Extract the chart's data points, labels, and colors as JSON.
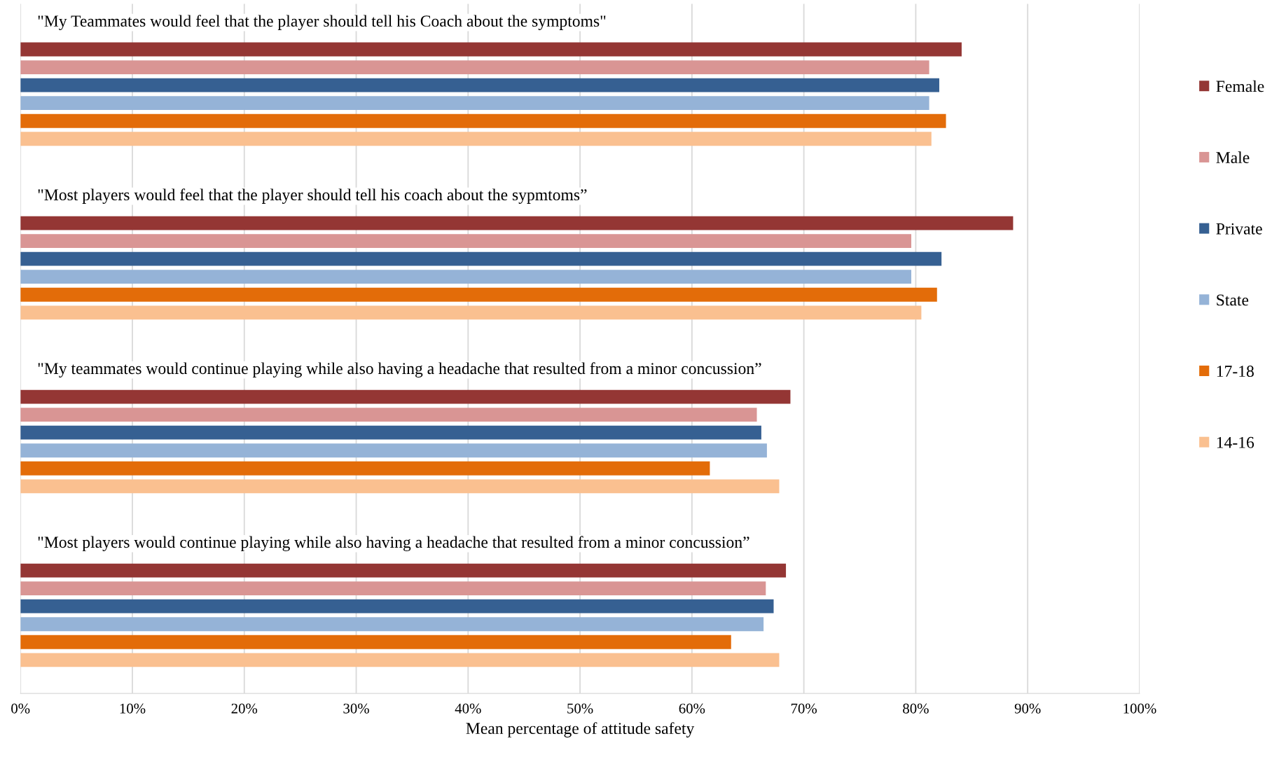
{
  "chart_data": {
    "type": "bar",
    "orientation": "horizontal",
    "xlabel": "Mean percentage of attitude safety",
    "categories": [
      "\"My Teammates would feel that the player should tell his Coach about the symptoms\"",
      "\"Most players would feel that the player should tell his coach about the sypmtoms”",
      "\"My teammates would continue playing while also having a headache that resulted from a minor concussion”",
      "\"Most players would continue playing while also having a headache that resulted from a minor concussion”"
    ],
    "series": [
      {
        "name": "Female",
        "color": "#943634",
        "values": [
          84.1,
          88.7,
          68.8,
          68.4
        ]
      },
      {
        "name": "Male",
        "color": "#d99594",
        "values": [
          81.2,
          79.6,
          65.8,
          66.6
        ]
      },
      {
        "name": "Private",
        "color": "#366092",
        "values": [
          82.1,
          82.3,
          66.2,
          67.3
        ]
      },
      {
        "name": "State",
        "color": "#95b3d7",
        "values": [
          81.2,
          79.6,
          66.7,
          66.4
        ]
      },
      {
        "name": "17-18",
        "color": "#e36c09",
        "values": [
          82.7,
          81.9,
          61.6,
          63.5
        ]
      },
      {
        "name": "14-16",
        "color": "#fac090",
        "values": [
          81.4,
          80.5,
          67.8,
          67.8
        ]
      }
    ],
    "xlim": [
      0,
      100
    ],
    "xticks": [
      {
        "value": 0,
        "label": "0%"
      },
      {
        "value": 10,
        "label": "10%"
      },
      {
        "value": 20,
        "label": "20%"
      },
      {
        "value": 30,
        "label": "30%"
      },
      {
        "value": 40,
        "label": "40%"
      },
      {
        "value": 50,
        "label": "50%"
      },
      {
        "value": 60,
        "label": "60%"
      },
      {
        "value": 70,
        "label": "70%"
      },
      {
        "value": 80,
        "label": "80%"
      },
      {
        "value": 90,
        "label": "90%"
      },
      {
        "value": 100,
        "label": "100%"
      }
    ],
    "grid": "x",
    "legend": "right"
  }
}
